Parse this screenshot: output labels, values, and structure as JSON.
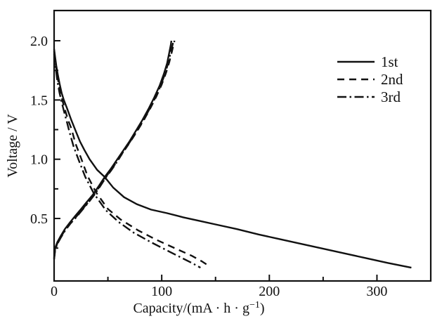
{
  "figure": {
    "background": "#ffffff",
    "line_color": "#111111"
  },
  "chart_data": {
    "type": "line",
    "title": "",
    "xlabel": "Capacity/(mA · h · g⁻¹)",
    "xlabel_parts": {
      "main": "Capacity/(mA · h · g",
      "sup": "−1",
      "end": ")"
    },
    "ylabel": "Voltage / V",
    "xlim": [
      0,
      350
    ],
    "ylim": [
      0,
      2.25
    ],
    "x_major_ticks": [
      0,
      100,
      200,
      300
    ],
    "x_major_tick_labels": [
      "0",
      "100",
      "200",
      "300"
    ],
    "x_minor_ticks": [
      50,
      150,
      250,
      350
    ],
    "y_major_ticks": [
      0.5,
      1.0,
      1.5,
      2.0
    ],
    "y_major_tick_labels": [
      "0.5",
      "1.0",
      "1.5",
      "2.0"
    ],
    "y_minor_ticks": [
      0.25,
      0.75,
      1.25,
      1.75
    ],
    "grid": false,
    "legend_position": "upper-right-inside",
    "legend": [
      {
        "label": "1st",
        "style": "solid"
      },
      {
        "label": "2nd",
        "style": "dashed"
      },
      {
        "label": "3rd",
        "style": "dashdot"
      }
    ],
    "series": [
      {
        "name": "1st-discharge",
        "cycle": "1st",
        "style": "solid",
        "points": [
          [
            0,
            1.93
          ],
          [
            1,
            1.86
          ],
          [
            2,
            1.79
          ],
          [
            3.5,
            1.71
          ],
          [
            5,
            1.64
          ],
          [
            7,
            1.56
          ],
          [
            9,
            1.5
          ],
          [
            12,
            1.43
          ],
          [
            16,
            1.33
          ],
          [
            20,
            1.24
          ],
          [
            24,
            1.15
          ],
          [
            28,
            1.08
          ],
          [
            33,
            1.0
          ],
          [
            40,
            0.91
          ],
          [
            47,
            0.85
          ],
          [
            55,
            0.76
          ],
          [
            65,
            0.68
          ],
          [
            77,
            0.62
          ],
          [
            90,
            0.575
          ],
          [
            105,
            0.545
          ],
          [
            120,
            0.51
          ],
          [
            135,
            0.48
          ],
          [
            150,
            0.45
          ],
          [
            170,
            0.41
          ],
          [
            190,
            0.365
          ],
          [
            210,
            0.325
          ],
          [
            230,
            0.285
          ],
          [
            250,
            0.245
          ],
          [
            270,
            0.205
          ],
          [
            290,
            0.165
          ],
          [
            310,
            0.125
          ],
          [
            332,
            0.085
          ]
        ]
      },
      {
        "name": "1st-charge",
        "cycle": "1st",
        "style": "solid",
        "points": [
          [
            0,
            0.17
          ],
          [
            1,
            0.25
          ],
          [
            3,
            0.3
          ],
          [
            6,
            0.35
          ],
          [
            10,
            0.41
          ],
          [
            15,
            0.47
          ],
          [
            20,
            0.525
          ],
          [
            25,
            0.58
          ],
          [
            30,
            0.635
          ],
          [
            36,
            0.7
          ],
          [
            42,
            0.78
          ],
          [
            47,
            0.85
          ],
          [
            52,
            0.91
          ],
          [
            58,
            0.99
          ],
          [
            64,
            1.07
          ],
          [
            70,
            1.15
          ],
          [
            76,
            1.24
          ],
          [
            82,
            1.33
          ],
          [
            88,
            1.43
          ],
          [
            93,
            1.52
          ],
          [
            98,
            1.62
          ],
          [
            102,
            1.72
          ],
          [
            105,
            1.81
          ],
          [
            107,
            1.9
          ],
          [
            108.5,
            1.97
          ],
          [
            109,
            2.0
          ]
        ]
      },
      {
        "name": "2nd-discharge",
        "cycle": "2nd",
        "style": "dashed",
        "points": [
          [
            0,
            1.91
          ],
          [
            1.5,
            1.8
          ],
          [
            3,
            1.7
          ],
          [
            5,
            1.6
          ],
          [
            7,
            1.52
          ],
          [
            10,
            1.42
          ],
          [
            13,
            1.33
          ],
          [
            16,
            1.26
          ],
          [
            20,
            1.13
          ],
          [
            25,
            1.01
          ],
          [
            31,
            0.86
          ],
          [
            39,
            0.72
          ],
          [
            50,
            0.58
          ],
          [
            62,
            0.49
          ],
          [
            78,
            0.4
          ],
          [
            95,
            0.32
          ],
          [
            112,
            0.25
          ],
          [
            128,
            0.185
          ],
          [
            137,
            0.14
          ],
          [
            143,
            0.105
          ]
        ]
      },
      {
        "name": "2nd-charge",
        "cycle": "2nd",
        "style": "dashed",
        "points": [
          [
            0,
            0.16
          ],
          [
            1,
            0.24
          ],
          [
            3,
            0.29
          ],
          [
            6,
            0.34
          ],
          [
            10,
            0.4
          ],
          [
            15,
            0.46
          ],
          [
            21,
            0.52
          ],
          [
            26,
            0.575
          ],
          [
            31,
            0.63
          ],
          [
            37,
            0.7
          ],
          [
            43,
            0.78
          ],
          [
            48,
            0.85
          ],
          [
            53,
            0.91
          ],
          [
            59,
            0.99
          ],
          [
            65,
            1.07
          ],
          [
            71,
            1.15
          ],
          [
            78,
            1.25
          ],
          [
            84,
            1.34
          ],
          [
            90,
            1.44
          ],
          [
            95,
            1.53
          ],
          [
            100,
            1.63
          ],
          [
            104,
            1.73
          ],
          [
            107,
            1.82
          ],
          [
            109.5,
            1.91
          ],
          [
            111.5,
            1.99
          ],
          [
            112,
            2.0
          ]
        ]
      },
      {
        "name": "3rd-discharge",
        "cycle": "3rd",
        "style": "dashdot",
        "points": [
          [
            0,
            1.89
          ],
          [
            1.5,
            1.77
          ],
          [
            3,
            1.66
          ],
          [
            5,
            1.56
          ],
          [
            6.5,
            1.5
          ],
          [
            9,
            1.41
          ],
          [
            12,
            1.31
          ],
          [
            14,
            1.24
          ],
          [
            18,
            1.11
          ],
          [
            23,
            0.99
          ],
          [
            29,
            0.85
          ],
          [
            37,
            0.71
          ],
          [
            48,
            0.57
          ],
          [
            60,
            0.47
          ],
          [
            74,
            0.38
          ],
          [
            90,
            0.3
          ],
          [
            105,
            0.23
          ],
          [
            118,
            0.17
          ],
          [
            128,
            0.125
          ],
          [
            136,
            0.085
          ]
        ]
      },
      {
        "name": "3rd-charge",
        "cycle": "3rd",
        "style": "dashdot",
        "points": [
          [
            0,
            0.155
          ],
          [
            1,
            0.235
          ],
          [
            3,
            0.285
          ],
          [
            6,
            0.335
          ],
          [
            10,
            0.395
          ],
          [
            15,
            0.455
          ],
          [
            21,
            0.515
          ],
          [
            26,
            0.57
          ],
          [
            31,
            0.625
          ],
          [
            37,
            0.695
          ],
          [
            43,
            0.775
          ],
          [
            48,
            0.845
          ],
          [
            53,
            0.905
          ],
          [
            59,
            0.985
          ],
          [
            64,
            1.06
          ],
          [
            70,
            1.14
          ],
          [
            77,
            1.24
          ],
          [
            83,
            1.33
          ],
          [
            89,
            1.43
          ],
          [
            94,
            1.52
          ],
          [
            99,
            1.62
          ],
          [
            103,
            1.72
          ],
          [
            106,
            1.81
          ],
          [
            108.5,
            1.91
          ],
          [
            110.5,
            1.98
          ],
          [
            111,
            2.0
          ]
        ]
      }
    ]
  }
}
